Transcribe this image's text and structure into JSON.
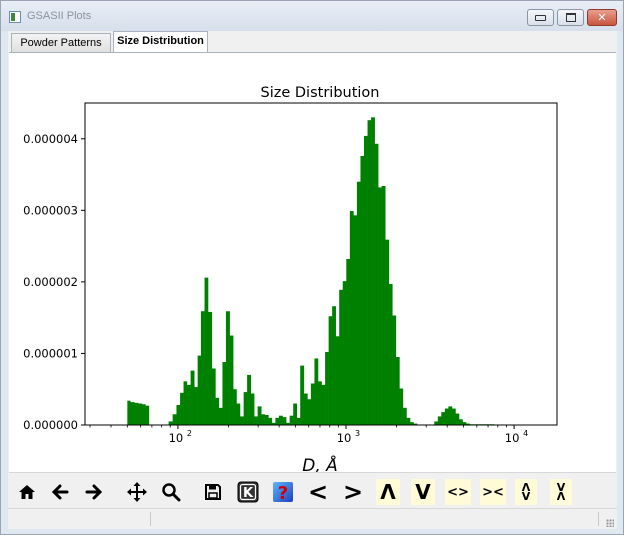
{
  "window": {
    "title": "GSASII Plots",
    "close_glyph": "✕"
  },
  "tabs": [
    {
      "label": "Powder Patterns",
      "active": false
    },
    {
      "label": "Size Distribution",
      "active": true
    }
  ],
  "toolbar": {
    "icons": [
      "home-icon",
      "back-arrow-icon",
      "forward-arrow-icon",
      "pan-icon",
      "zoom-icon",
      "save-icon",
      "key-icon",
      "help-icon",
      "shift-left-icon",
      "shift-right-icon",
      "shift-up-icon",
      "shift-down-icon",
      "expand-x-icon",
      "shrink-x-icon",
      "expand-y-icon",
      "shrink-y-icon"
    ],
    "key_label": "K",
    "help_label": "?",
    "shift_left": "<",
    "shift_right": ">",
    "shift_up": "Λ",
    "shift_down": "V",
    "expand_x": "<>",
    "shrink_x": "><",
    "expand_y_top": "Λ",
    "expand_y_bottom": "V",
    "shrink_y_top": "V",
    "shrink_y_bottom": "Λ"
  },
  "chart_data": {
    "type": "bar",
    "title": "Size Distribution",
    "xlabel": "D, Å",
    "ylabel": "",
    "xscale": "log",
    "xlim": [
      28,
      18000
    ],
    "ylim": [
      0,
      4.5e-06
    ],
    "color": "#008000",
    "xticks": [
      {
        "value": 100,
        "base": "10",
        "exp": "2"
      },
      {
        "value": 1000,
        "base": "10",
        "exp": "3"
      },
      {
        "value": 10000,
        "base": "10",
        "exp": "4"
      }
    ],
    "yticks": [
      {
        "value": 0,
        "label": "0.000000"
      },
      {
        "value": 1e-06,
        "label": "0.000001"
      },
      {
        "value": 2e-06,
        "label": "0.000002"
      },
      {
        "value": 3e-06,
        "label": "0.000003"
      },
      {
        "value": 4e-06,
        "label": "0.000004"
      }
    ],
    "bins": [
      {
        "x": 50,
        "y": 3.4e-07
      },
      {
        "x": 52,
        "y": 3.2e-07
      },
      {
        "x": 55,
        "y": 3.1e-07
      },
      {
        "x": 58,
        "y": 3e-07
      },
      {
        "x": 61,
        "y": 2.9e-07
      },
      {
        "x": 64,
        "y": 2.7e-07
      },
      {
        "x": 88,
        "y": 5e-08
      },
      {
        "x": 93,
        "y": 1.5e-07
      },
      {
        "x": 98,
        "y": 2.8e-07
      },
      {
        "x": 103,
        "y": 4.5e-07
      },
      {
        "x": 108,
        "y": 6.1e-07
      },
      {
        "x": 113,
        "y": 5.6e-07
      },
      {
        "x": 119,
        "y": 7.6e-07
      },
      {
        "x": 125,
        "y": 5.3e-07
      },
      {
        "x": 131,
        "y": 9.7e-07
      },
      {
        "x": 137,
        "y": 1.59e-06
      },
      {
        "x": 144,
        "y": 2.06e-06
      },
      {
        "x": 151,
        "y": 1.58e-06
      },
      {
        "x": 159,
        "y": 7.9e-07
      },
      {
        "x": 167,
        "y": 3.8e-07
      },
      {
        "x": 175,
        "y": 2.4e-07
      },
      {
        "x": 184,
        "y": 8.8e-07
      },
      {
        "x": 193,
        "y": 1.59e-06
      },
      {
        "x": 203,
        "y": 1.25e-06
      },
      {
        "x": 213,
        "y": 5e-07
      },
      {
        "x": 223,
        "y": 3e-07
      },
      {
        "x": 234,
        "y": 1.2e-07
      },
      {
        "x": 246,
        "y": 4.6e-07
      },
      {
        "x": 258,
        "y": 7e-07
      },
      {
        "x": 271,
        "y": 4.4e-07
      },
      {
        "x": 284,
        "y": 1.2e-07
      },
      {
        "x": 298,
        "y": 2.6e-07
      },
      {
        "x": 313,
        "y": 1.5e-07
      },
      {
        "x": 328,
        "y": 1.4e-07
      },
      {
        "x": 345,
        "y": 1e-07
      },
      {
        "x": 362,
        "y": 3e-08
      },
      {
        "x": 380,
        "y": 1e-07
      },
      {
        "x": 399,
        "y": 1.3e-07
      },
      {
        "x": 419,
        "y": 1.1e-07
      },
      {
        "x": 440,
        "y": 3e-08
      },
      {
        "x": 462,
        "y": 1.3e-07
      },
      {
        "x": 485,
        "y": 3e-07
      },
      {
        "x": 509,
        "y": 1e-07
      },
      {
        "x": 534,
        "y": 8.3e-07
      },
      {
        "x": 561,
        "y": 4.4e-07
      },
      {
        "x": 589,
        "y": 3.6e-07
      },
      {
        "x": 618,
        "y": 5.8e-07
      },
      {
        "x": 649,
        "y": 9.3e-07
      },
      {
        "x": 681,
        "y": 6.1e-07
      },
      {
        "x": 715,
        "y": 5.6e-07
      },
      {
        "x": 751,
        "y": 1.02e-06
      },
      {
        "x": 788,
        "y": 1.52e-06
      },
      {
        "x": 827,
        "y": 1.66e-06
      },
      {
        "x": 868,
        "y": 1.24e-06
      },
      {
        "x": 911,
        "y": 1.89e-06
      },
      {
        "x": 956,
        "y": 2.01e-06
      },
      {
        "x": 1004,
        "y": 2.32e-06
      },
      {
        "x": 1054,
        "y": 2.99e-06
      },
      {
        "x": 1106,
        "y": 2.93e-06
      },
      {
        "x": 1161,
        "y": 3.4e-06
      },
      {
        "x": 1219,
        "y": 3.76e-06
      },
      {
        "x": 1279,
        "y": 4.04e-06
      },
      {
        "x": 1343,
        "y": 4.26e-06
      },
      {
        "x": 1410,
        "y": 4.3e-06
      },
      {
        "x": 1480,
        "y": 3.93e-06
      },
      {
        "x": 1553,
        "y": 3.32e-06
      },
      {
        "x": 1630,
        "y": 3.34e-06
      },
      {
        "x": 1711,
        "y": 2.59e-06
      },
      {
        "x": 1796,
        "y": 1.97e-06
      },
      {
        "x": 1885,
        "y": 1.53e-06
      },
      {
        "x": 1979,
        "y": 9.5e-07
      },
      {
        "x": 2077,
        "y": 5.1e-07
      },
      {
        "x": 2180,
        "y": 2.4e-07
      },
      {
        "x": 2288,
        "y": 1e-07
      },
      {
        "x": 2402,
        "y": 4e-08
      },
      {
        "x": 2521,
        "y": 2e-08
      },
      {
        "x": 3350,
        "y": 5e-08
      },
      {
        "x": 3516,
        "y": 1.2e-07
      },
      {
        "x": 3690,
        "y": 1.8e-07
      },
      {
        "x": 3873,
        "y": 2.3e-07
      },
      {
        "x": 4065,
        "y": 2.6e-07
      },
      {
        "x": 4267,
        "y": 2.3e-07
      },
      {
        "x": 4478,
        "y": 1.6e-07
      },
      {
        "x": 4700,
        "y": 8e-08
      },
      {
        "x": 4933,
        "y": 4e-08
      },
      {
        "x": 5178,
        "y": 2e-08
      },
      {
        "x": 5434,
        "y": 1e-08
      },
      {
        "x": 5704,
        "y": 1e-08
      },
      {
        "x": 5987,
        "y": 1e-08
      },
      {
        "x": 6284,
        "y": 1e-08
      },
      {
        "x": 6595,
        "y": 1e-08
      },
      {
        "x": 6922,
        "y": 1e-08
      },
      {
        "x": 7265,
        "y": 1e-08
      }
    ]
  }
}
